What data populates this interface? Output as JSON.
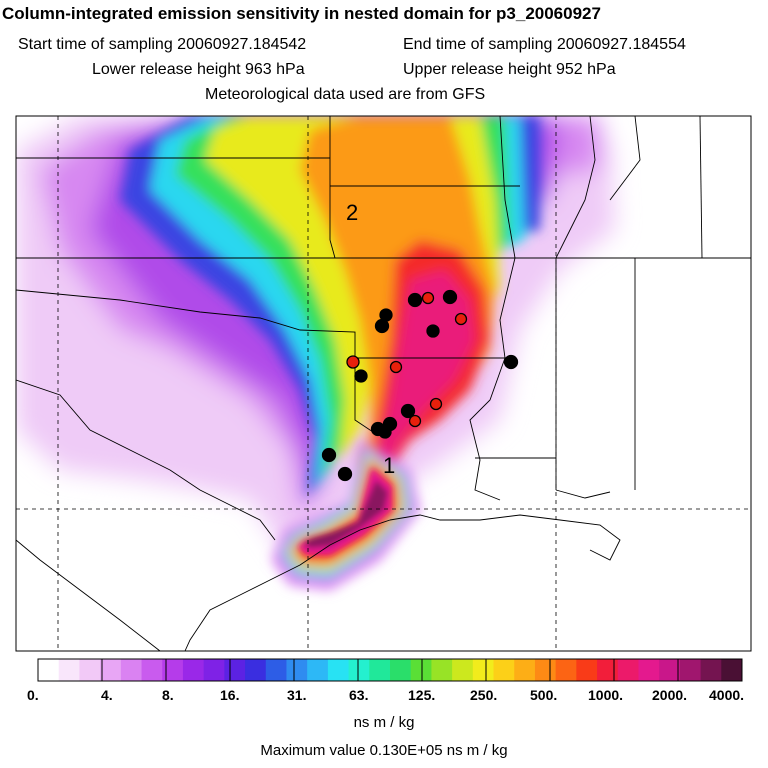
{
  "header": {
    "title": "Column-integrated emission sensitivity in nested domain for p3_20060927",
    "start_label": "Start time of sampling 20060927.184542",
    "end_label": "End time of sampling 20060927.184554",
    "lower_label": "Lower release height  963 hPa",
    "upper_label": "Upper release height  952 hPa",
    "met_label": "Meteorological data used are from GFS"
  },
  "map": {
    "labels": [
      "2",
      "1"
    ],
    "colors": {
      "black_marker": "#000000",
      "red_marker": "#e8200c",
      "border": "#000000"
    }
  },
  "colorbar": {
    "ticks": [
      "0.",
      "4.",
      "8.",
      "16.",
      "31.",
      "63.",
      "125.",
      "250.",
      "500.",
      "1000.",
      "2000.",
      "4000."
    ],
    "units": "ns m / kg",
    "colors": [
      "#ffffff",
      "#f9e6fb",
      "#f2c9f7",
      "#e8a6f5",
      "#da82f2",
      "#c95bee",
      "#b53cea",
      "#9a28e8",
      "#7f22e6",
      "#5c22e3",
      "#3a2ee0",
      "#2d5de6",
      "#2f8cf0",
      "#2db8f6",
      "#28e2f3",
      "#24f0cf",
      "#20e89a",
      "#2ade6a",
      "#5adf36",
      "#98e326",
      "#cce81e",
      "#f2ec1c",
      "#fcd018",
      "#fdae16",
      "#fd8a15",
      "#fc6414",
      "#f93b18",
      "#f21e3a",
      "#ec1a6a",
      "#e4198e",
      "#c9178a",
      "#a0166e",
      "#741450",
      "#4a1034"
    ]
  },
  "footer": {
    "max_value": "Maximum value  0.130E+05 ns m / kg"
  }
}
